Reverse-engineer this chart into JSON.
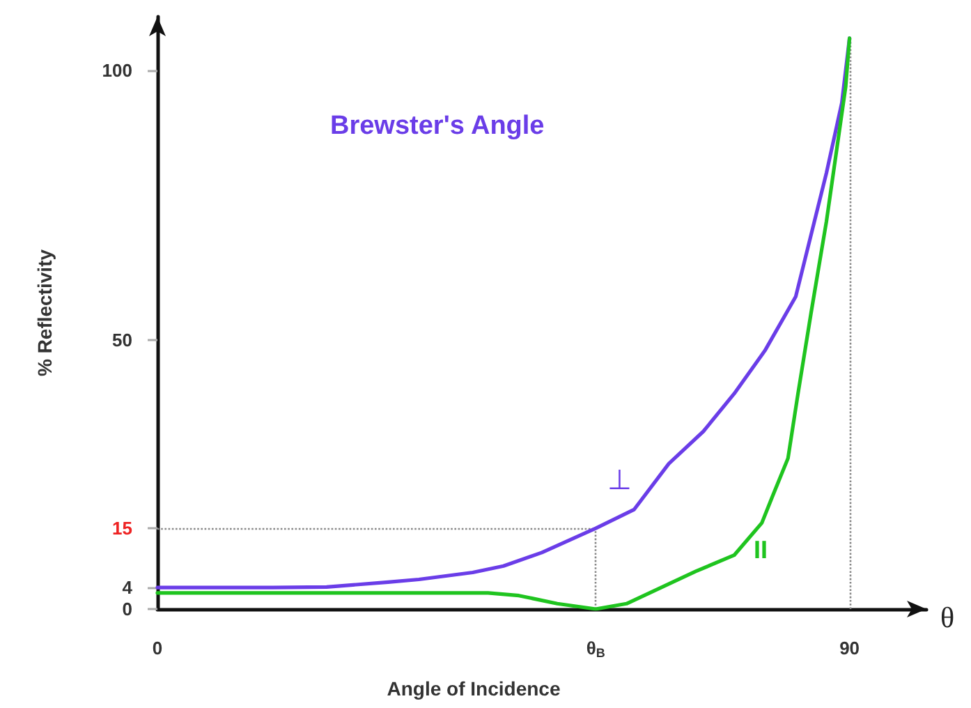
{
  "chart_data": {
    "type": "line",
    "title": "Brewster's Angle",
    "xlabel": "Angle of Incidence",
    "ylabel": "% Reflectivity",
    "annotations": [
      "θ"
    ],
    "series": [
      {
        "name": "⊥",
        "color": "#6a3de8",
        "x": [
          0,
          15,
          22,
          30,
          34,
          41,
          45,
          50,
          57,
          62,
          66.5,
          71,
          75,
          79,
          83,
          87,
          89,
          90
        ],
        "values": [
          4,
          4,
          4.1,
          5,
          5.5,
          6.8,
          8,
          10.5,
          15,
          18.5,
          27,
          33,
          40,
          48,
          58,
          81,
          94,
          106
        ]
      },
      {
        "name": "II",
        "color": "#1fc41f",
        "x": [
          0,
          20,
          38,
          43,
          47,
          52,
          57,
          61,
          64,
          70,
          75,
          78.6,
          80,
          82,
          83.3,
          85,
          87,
          89.5,
          90
        ],
        "values": [
          3,
          3,
          3,
          3,
          2.5,
          1,
          0,
          1,
          3,
          7,
          10,
          16,
          21,
          28,
          40,
          55,
          72,
          97,
          106
        ]
      }
    ],
    "xlim": [
      0,
      100
    ],
    "xticks": [
      0,
      {
        "value": 57,
        "label": "θ$_{B}$"
      },
      90
    ],
    "ylim": [
      0,
      110
    ],
    "yticks": [
      0,
      4,
      15,
      50,
      100
    ],
    "ref_lines": [
      {
        "axis": "y",
        "value": 15,
        "color": "#888888",
        "line_style": "dotted"
      },
      {
        "axis": "x",
        "value": 57,
        "color": "#888888",
        "line_style": "dotted"
      },
      {
        "axis": "x",
        "value": 90,
        "color": "#888888",
        "line_style": "dotted"
      }
    ],
    "marker": "none",
    "line_style": "solid"
  }
}
